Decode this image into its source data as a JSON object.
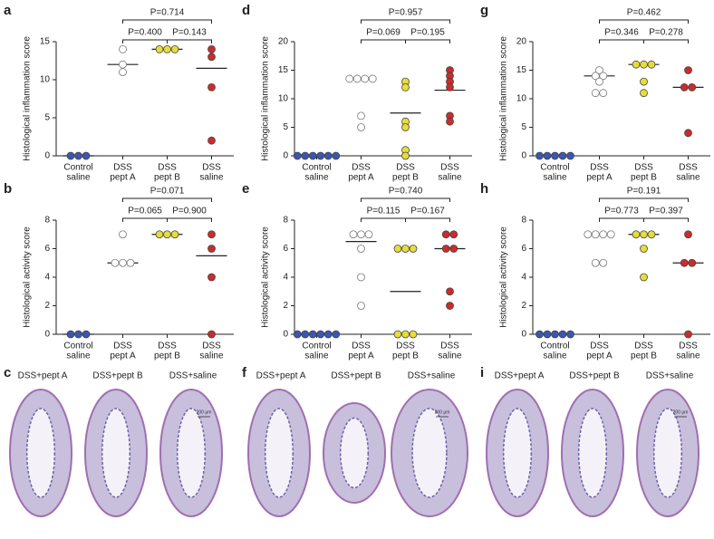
{
  "chart_data": [
    {
      "type": "dot",
      "panel": "a",
      "ylabel": "Histological inflammation score",
      "categories": [
        [
          "Control",
          "saline"
        ],
        [
          "DSS",
          "pept A"
        ],
        [
          "DSS",
          "pept B"
        ],
        [
          "DSS",
          "saline"
        ]
      ],
      "colors": [
        "#3b56b0",
        "#ffffff",
        "#e8dc3a",
        "#cc2b2b"
      ],
      "groups": [
        [
          0,
          0,
          0
        ],
        [
          14,
          12,
          11
        ],
        [
          14,
          14,
          14
        ],
        [
          14,
          13,
          9,
          2
        ]
      ],
      "medians": [
        0,
        12,
        14,
        11.5
      ],
      "p_values": [
        "P=0.400",
        "P=0.143",
        "P=0.714"
      ],
      "ylim": [
        0,
        15
      ],
      "yticks": [
        0,
        5,
        10,
        15
      ]
    },
    {
      "type": "dot",
      "panel": "b",
      "ylabel": "Histological activity score",
      "categories": [
        [
          "Control",
          "saline"
        ],
        [
          "DSS",
          "pept A"
        ],
        [
          "DSS",
          "pept B"
        ],
        [
          "DSS",
          "saline"
        ]
      ],
      "colors": [
        "#3b56b0",
        "#ffffff",
        "#e8dc3a",
        "#cc2b2b"
      ],
      "groups": [
        [
          0,
          0,
          0
        ],
        [
          7,
          5,
          5,
          5
        ],
        [
          7,
          7,
          7
        ],
        [
          7,
          6,
          4,
          0
        ]
      ],
      "medians": [
        0,
        5,
        7,
        5.5
      ],
      "p_values": [
        "P=0.065",
        "P=0.900",
        "P=0.071"
      ],
      "ylim": [
        0,
        8
      ],
      "yticks": [
        0,
        2,
        4,
        6,
        8
      ]
    },
    {
      "type": "dot",
      "panel": "d",
      "ylabel": "Histological inflammation score",
      "categories": [
        [
          "Control",
          "saline"
        ],
        [
          "DSS",
          "pept A"
        ],
        [
          "DSS",
          "pept B"
        ],
        [
          "DSS",
          "saline"
        ]
      ],
      "colors": [
        "#3b56b0",
        "#ffffff",
        "#e8dc3a",
        "#cc2b2b"
      ],
      "groups": [
        [
          0,
          0,
          0,
          0,
          0,
          0
        ],
        [
          13.5,
          13.5,
          13.5,
          13.5,
          7,
          5
        ],
        [
          13,
          12,
          6,
          5,
          1,
          0
        ],
        [
          15,
          14,
          13,
          12,
          7,
          6
        ]
      ],
      "medians": [
        0,
        13.5,
        7.5,
        11.5
      ],
      "p_values": [
        "P=0.069",
        "P=0.195",
        "P=0.957"
      ],
      "ylim": [
        0,
        20
      ],
      "yticks": [
        0,
        5,
        10,
        15,
        20
      ]
    },
    {
      "type": "dot",
      "panel": "e",
      "ylabel": "Histological activity score",
      "categories": [
        [
          "Control",
          "saline"
        ],
        [
          "DSS",
          "pept A"
        ],
        [
          "DSS",
          "pept B"
        ],
        [
          "DSS",
          "saline"
        ]
      ],
      "colors": [
        "#3b56b0",
        "#ffffff",
        "#e8dc3a",
        "#cc2b2b"
      ],
      "groups": [
        [
          0,
          0,
          0,
          0,
          0,
          0
        ],
        [
          7,
          7,
          7,
          6,
          4,
          2
        ],
        [
          6,
          6,
          6,
          0,
          0,
          0
        ],
        [
          7,
          7,
          6,
          6,
          3,
          2
        ]
      ],
      "medians": [
        0,
        6.5,
        3,
        6
      ],
      "p_values": [
        "P=0.115",
        "P=0.167",
        "P=0.740"
      ],
      "ylim": [
        0,
        8
      ],
      "yticks": [
        0,
        2,
        4,
        6,
        8
      ]
    },
    {
      "type": "dot",
      "panel": "g",
      "ylabel": "Histological inflammation score",
      "categories": [
        [
          "Control",
          "saline"
        ],
        [
          "DSS",
          "pept A"
        ],
        [
          "DSS",
          "pept B"
        ],
        [
          "DSS",
          "saline"
        ]
      ],
      "colors": [
        "#3b56b0",
        "#ffffff",
        "#e8dc3a",
        "#cc2b2b"
      ],
      "groups": [
        [
          0,
          0,
          0,
          0,
          0
        ],
        [
          15,
          14,
          14,
          13,
          11,
          11
        ],
        [
          16,
          16,
          16,
          13,
          11
        ],
        [
          15,
          12,
          12,
          4
        ]
      ],
      "medians": [
        0,
        14,
        16,
        12
      ],
      "p_values": [
        "P=0.346",
        "P=0.278",
        "P=0.462"
      ],
      "ylim": [
        0,
        20
      ],
      "yticks": [
        0,
        5,
        10,
        15,
        20
      ]
    },
    {
      "type": "dot",
      "panel": "h",
      "ylabel": "Histological activity score",
      "categories": [
        [
          "Control",
          "saline"
        ],
        [
          "DSS",
          "pept A"
        ],
        [
          "DSS",
          "pept B"
        ],
        [
          "DSS",
          "saline"
        ]
      ],
      "colors": [
        "#3b56b0",
        "#ffffff",
        "#e8dc3a",
        "#cc2b2b"
      ],
      "groups": [
        [
          0,
          0,
          0,
          0,
          0
        ],
        [
          7,
          7,
          7,
          7,
          5,
          5
        ],
        [
          7,
          7,
          7,
          6,
          4
        ],
        [
          7,
          5,
          5,
          0
        ]
      ],
      "medians": [
        0,
        7,
        7,
        5
      ],
      "p_values": [
        "P=0.773",
        "P=0.397",
        "P=0.191"
      ],
      "ylim": [
        0,
        8
      ],
      "yticks": [
        0,
        2,
        4,
        6,
        8
      ]
    }
  ],
  "histology": [
    {
      "panel": "c",
      "captions": [
        "DSS+pept A",
        "DSS+pept B",
        "DSS+saline"
      ],
      "scale_bar": "200 µm"
    },
    {
      "panel": "f",
      "captions": [
        "DSS+pept A",
        "DSS+pept B",
        "DSS+saline"
      ],
      "scale_bar": "200 µm"
    },
    {
      "panel": "i",
      "captions": [
        "DSS+pept A",
        "DSS+pept B",
        "DSS+saline"
      ],
      "scale_bar": "200 µm"
    }
  ]
}
